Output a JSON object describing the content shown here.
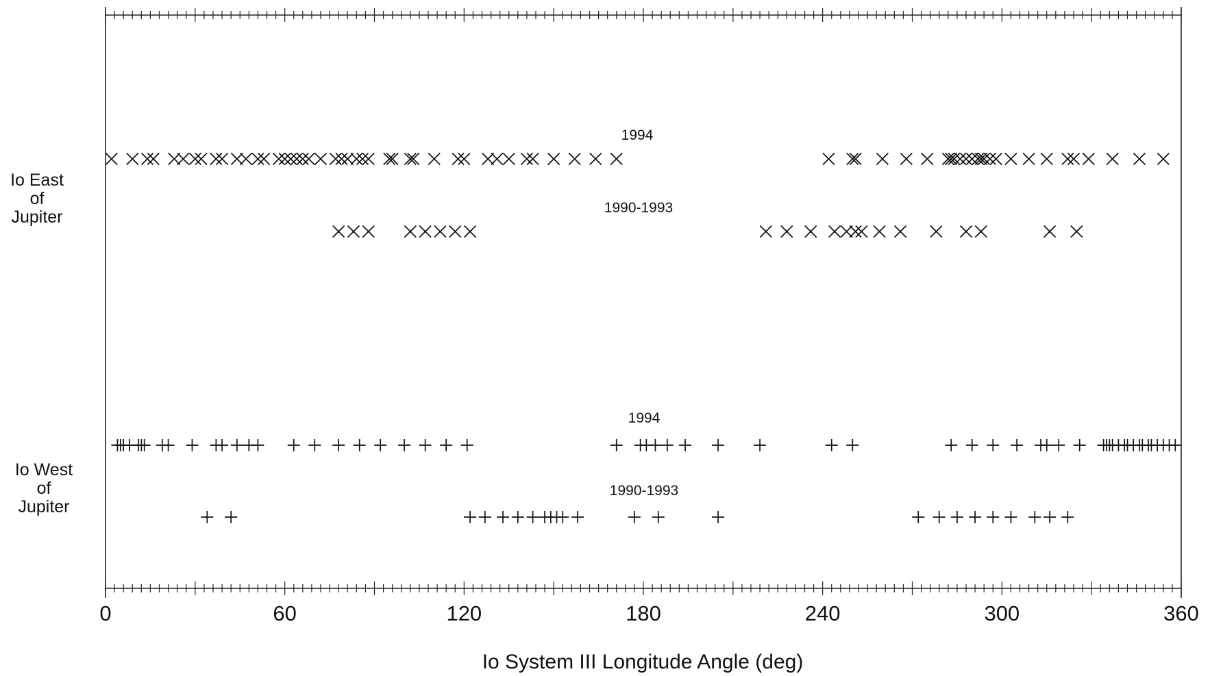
{
  "chart_data": {
    "type": "scatter",
    "title": "",
    "xlabel": "Io System III Longitude Angle (deg)",
    "ylabel": "",
    "xlim": [
      0,
      360
    ],
    "x_ticks": [
      "0",
      "60",
      "120",
      "180",
      "240",
      "300",
      "360"
    ],
    "grid": false,
    "side_labels": {
      "east": [
        "Io East",
        "of",
        "Jupiter"
      ],
      "west": [
        "Io West",
        "of",
        "Jupiter"
      ]
    },
    "series": [
      {
        "group": "east",
        "label": "1994",
        "marker": "x",
        "x": [
          2,
          9,
          14,
          16,
          23,
          26,
          30,
          32,
          37,
          39,
          44,
          47,
          51,
          53,
          58,
          60,
          62,
          64,
          66,
          68,
          72,
          77,
          79,
          81,
          84,
          86,
          88,
          95,
          96,
          102,
          103,
          110,
          118,
          120,
          128,
          131,
          135,
          141,
          143,
          150,
          157,
          164,
          171,
          242,
          250,
          251,
          260,
          268,
          275,
          282,
          283,
          284,
          286,
          288,
          290,
          292,
          293,
          294,
          296,
          298,
          303,
          309,
          315,
          322,
          324,
          329,
          337,
          346,
          354
        ]
      },
      {
        "group": "east",
        "label": "1990-1993",
        "marker": "x",
        "x": [
          78,
          83,
          88,
          102,
          107,
          112,
          117,
          122,
          221,
          228,
          236,
          244,
          248,
          251,
          253,
          259,
          266,
          278,
          288,
          293,
          316,
          325
        ]
      },
      {
        "group": "west",
        "label": "1994",
        "marker": "+",
        "x": [
          4,
          5,
          6,
          8,
          11,
          12,
          13,
          19,
          21,
          29,
          37,
          39,
          44,
          48,
          51,
          63,
          70,
          78,
          85,
          92,
          100,
          107,
          114,
          121,
          171,
          179,
          181,
          184,
          188,
          194,
          205,
          219,
          243,
          250,
          283,
          290,
          297,
          305,
          313,
          315,
          319,
          326,
          334,
          335,
          336,
          337,
          339,
          341,
          342,
          344,
          346,
          347,
          349,
          350,
          352,
          354,
          356,
          358
        ]
      },
      {
        "group": "west",
        "label": "1990-1993",
        "marker": "+",
        "x": [
          34,
          42,
          122,
          127,
          133,
          138,
          143,
          147,
          149,
          151,
          153,
          158,
          177,
          185,
          205,
          272,
          279,
          285,
          291,
          297,
          303,
          311,
          316,
          322
        ]
      }
    ]
  }
}
